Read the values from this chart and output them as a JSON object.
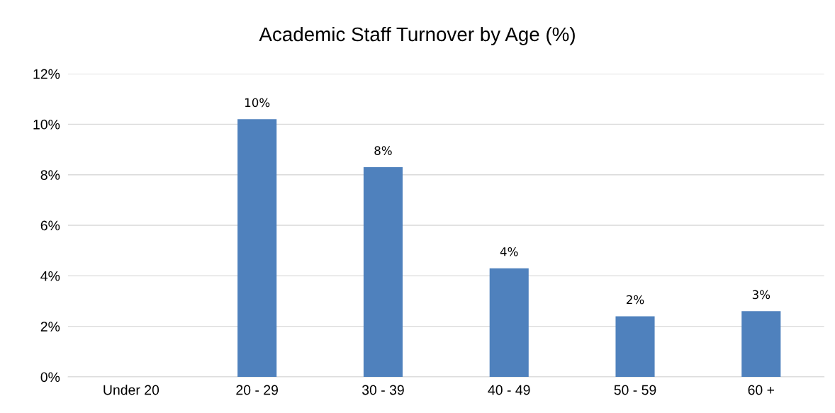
{
  "chart_data": {
    "type": "bar",
    "title": "Academic Staff Turnover by Age (%)",
    "categories": [
      "Under 20",
      "20 - 29",
      "30 - 39",
      "40 - 49",
      "50 - 59",
      "60 +"
    ],
    "values": [
      0,
      10.2,
      8.3,
      4.3,
      2.4,
      2.6
    ],
    "value_labels": [
      null,
      "10%",
      "8%",
      "4%",
      "2%",
      "3%"
    ],
    "color": "#4f81bd",
    "ylim": [
      0,
      12
    ],
    "yticks": [
      {
        "value": 0,
        "label": "0%"
      },
      {
        "value": 2,
        "label": "2%"
      },
      {
        "value": 4,
        "label": "4%"
      },
      {
        "value": 6,
        "label": "6%"
      },
      {
        "value": 8,
        "label": "8%"
      },
      {
        "value": 10,
        "label": "10%"
      },
      {
        "value": 12,
        "label": "12%"
      }
    ],
    "grid": "y",
    "legend": false
  }
}
